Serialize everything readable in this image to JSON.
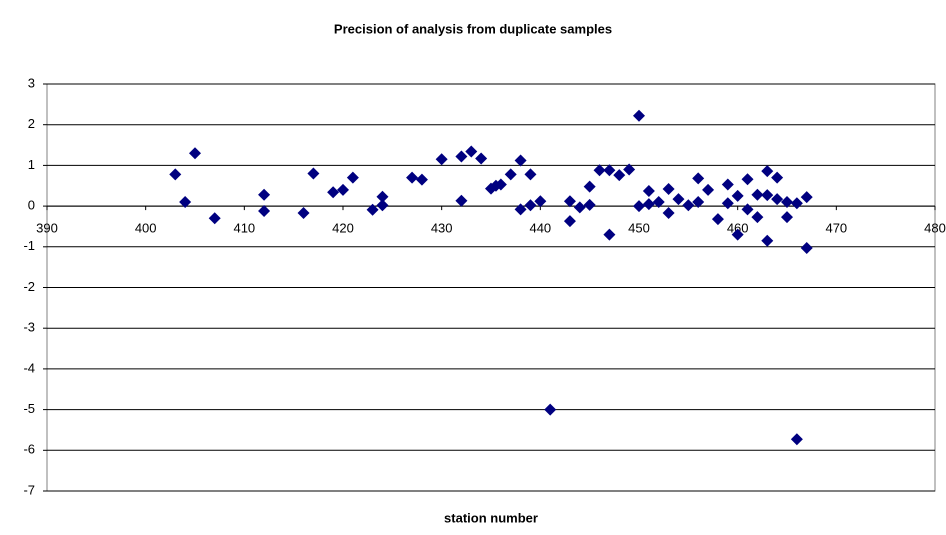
{
  "chart_data": {
    "type": "scatter",
    "title": "Precision of analysis from duplicate samples",
    "x_label": "station number",
    "series": [
      {
        "color": "#000080",
        "x": [
          403,
          404,
          405,
          407,
          412,
          412,
          416,
          417,
          419,
          420,
          421,
          423,
          424,
          424,
          427,
          428,
          430,
          432,
          432,
          433,
          434,
          435,
          435.5,
          436,
          437,
          438,
          438,
          439,
          439,
          440,
          441,
          443,
          443,
          444,
          445,
          445,
          446,
          447,
          447,
          448,
          449,
          450,
          450,
          451,
          451,
          452,
          453,
          453,
          454,
          455,
          456,
          456,
          457,
          458,
          459,
          459,
          460,
          460,
          461,
          461,
          462,
          462,
          463,
          463,
          463,
          464,
          464,
          465,
          465,
          466,
          466,
          467,
          467
        ],
        "values": [
          0.78,
          0.1,
          1.3,
          -0.3,
          0.28,
          -0.12,
          -0.17,
          0.8,
          0.34,
          0.4,
          0.7,
          -0.09,
          0.23,
          0.02,
          0.7,
          0.65,
          1.15,
          1.22,
          0.13,
          1.34,
          1.17,
          0.43,
          0.5,
          0.53,
          0.78,
          1.12,
          -0.08,
          0.78,
          0.02,
          0.12,
          -5.0,
          0.12,
          -0.37,
          -0.03,
          0.48,
          0.03,
          0.88,
          0.88,
          -0.7,
          0.76,
          0.9,
          2.22,
          0.0,
          0.37,
          0.05,
          0.1,
          0.42,
          -0.17,
          0.17,
          0.02,
          0.68,
          0.1,
          0.4,
          -0.32,
          0.53,
          0.07,
          0.25,
          -0.7,
          0.66,
          -0.08,
          0.28,
          -0.27,
          0.86,
          0.27,
          -0.85,
          0.7,
          0.17,
          0.1,
          -0.27,
          0.07,
          -5.73,
          0.22,
          -1.03
        ]
      }
    ],
    "xlim": [
      390,
      480
    ],
    "xticks": [
      390,
      400,
      410,
      420,
      430,
      440,
      450,
      460,
      470,
      480
    ],
    "ylim": [
      -7,
      3
    ],
    "yticks": [
      -7,
      -6,
      -5,
      -4,
      -3,
      -2,
      -1,
      0,
      1,
      2,
      3
    ],
    "grid": true
  }
}
